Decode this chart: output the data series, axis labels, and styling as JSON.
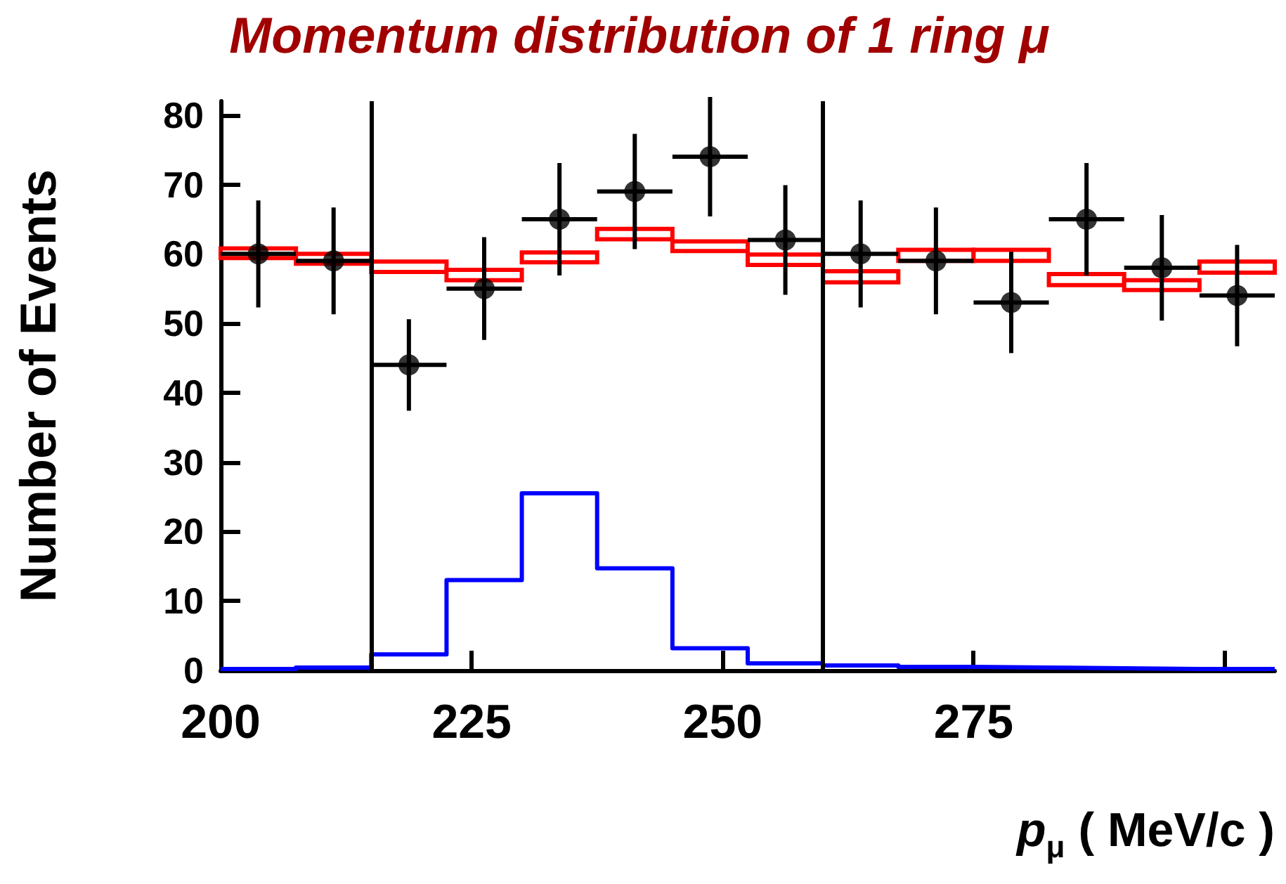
{
  "chart_data": {
    "type": "scatter",
    "title": "Momentum distribution of 1 ring μ",
    "xlabel": "p$_{μ}$ ( MeV/c )",
    "ylabel": "Number of Events",
    "xlim": [
      200,
      305
    ],
    "xticks": [
      200,
      225,
      250,
      275,
      {
        "value": 300,
        "label": null
      }
    ],
    "ylim": [
      0,
      82
    ],
    "yticks": [
      0,
      10,
      20,
      30,
      40,
      50,
      60,
      70,
      80
    ],
    "ref_lines": [
      {
        "axis": "x",
        "value": 215,
        "color": "#000000",
        "line_style": "solid"
      },
      {
        "axis": "x",
        "value": 260,
        "color": "#000000",
        "line_style": "solid"
      }
    ],
    "series": [
      {
        "type": "histogram",
        "color": "#0000ff",
        "bins": [
          200,
          207.5,
          215,
          222.5,
          230,
          237.5,
          245,
          252.5,
          260,
          267.5,
          275,
          282.5,
          290,
          297.5,
          305
        ],
        "values": [
          0.2,
          0.4,
          2.3,
          13,
          25.5,
          14.7,
          3.2,
          1.0,
          0.7,
          0.5,
          0.4,
          0.3,
          0.2,
          0.2
        ]
      },
      {
        "type": "bar",
        "color": "#ff0000",
        "x": [
          203.75,
          211.25,
          218.75,
          226.25,
          233.75,
          241.25,
          248.75,
          256.25,
          263.75,
          271.25,
          278.75,
          286.25,
          293.75,
          301.25
        ],
        "base": [
          59.4,
          58.6,
          57.4,
          56.2,
          58.8,
          62.1,
          60.4,
          58.4,
          55.9,
          59,
          59,
          55.5,
          54.8,
          57.3
        ],
        "values": [
          1.4,
          1.4,
          1.5,
          1.5,
          1.4,
          1.5,
          1.4,
          1.5,
          1.6,
          1.6,
          1.6,
          1.6,
          1.4,
          1.6
        ]
      },
      {
        "color": "#000000",
        "marker": "circle",
        "x": [
          203.75,
          211.25,
          218.75,
          226.25,
          233.75,
          241.25,
          248.75,
          256.25,
          263.75,
          271.25,
          278.75,
          286.25,
          293.75,
          301.25
        ],
        "values": [
          60,
          59,
          44,
          55,
          65,
          69,
          74,
          62,
          60,
          59,
          53,
          65,
          58,
          54
        ],
        "errors": [
          7.7,
          7.7,
          6.6,
          7.4,
          8.1,
          8.3,
          8.6,
          7.9,
          7.7,
          7.7,
          7.3,
          8.1,
          7.6,
          7.3
        ],
        "xerrors": [
          3.75,
          3.75,
          3.75,
          3.75,
          3.75,
          3.75,
          3.75,
          3.75,
          3.75,
          3.75,
          3.75,
          3.75,
          3.75,
          3.75
        ]
      }
    ]
  }
}
